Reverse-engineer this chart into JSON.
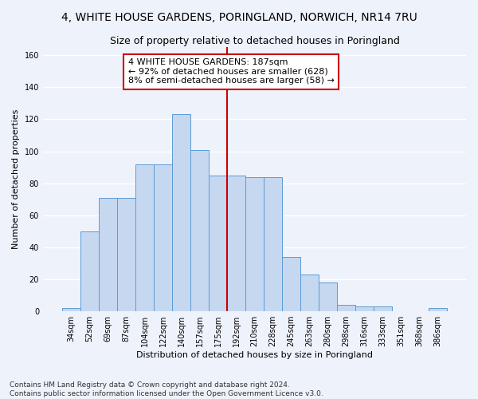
{
  "title": "4, WHITE HOUSE GARDENS, PORINGLAND, NORWICH, NR14 7RU",
  "subtitle": "Size of property relative to detached houses in Poringland",
  "xlabel": "Distribution of detached houses by size in Poringland",
  "ylabel": "Number of detached properties",
  "bar_values": [
    2,
    50,
    71,
    71,
    92,
    92,
    123,
    101,
    85,
    85,
    84,
    84,
    34,
    23,
    18,
    4,
    3,
    3,
    0,
    0,
    2
  ],
  "bar_labels": [
    "34sqm",
    "52sqm",
    "69sqm",
    "87sqm",
    "104sqm",
    "122sqm",
    "140sqm",
    "157sqm",
    "175sqm",
    "192sqm",
    "210sqm",
    "228sqm",
    "245sqm",
    "263sqm",
    "280sqm",
    "298sqm",
    "316sqm",
    "333sqm",
    "351sqm",
    "368sqm",
    "386sqm"
  ],
  "bar_color": "#c5d8f0",
  "bar_edge_color": "#5b9bd5",
  "vline_color": "#cc0000",
  "annotation_text": "4 WHITE HOUSE GARDENS: 187sqm\n← 92% of detached houses are smaller (628)\n8% of semi-detached houses are larger (58) →",
  "annotation_box_color": "#ffffff",
  "annotation_box_edge": "#cc0000",
  "ylim": [
    0,
    165
  ],
  "yticks": [
    0,
    20,
    40,
    60,
    80,
    100,
    120,
    140,
    160
  ],
  "footer_line1": "Contains HM Land Registry data © Crown copyright and database right 2024.",
  "footer_line2": "Contains public sector information licensed under the Open Government Licence v3.0.",
  "bg_color": "#eef2fb",
  "grid_color": "#ffffff",
  "title_fontsize": 10,
  "subtitle_fontsize": 9,
  "axis_label_fontsize": 8,
  "tick_fontsize": 7,
  "annotation_fontsize": 8,
  "footer_fontsize": 6.5
}
